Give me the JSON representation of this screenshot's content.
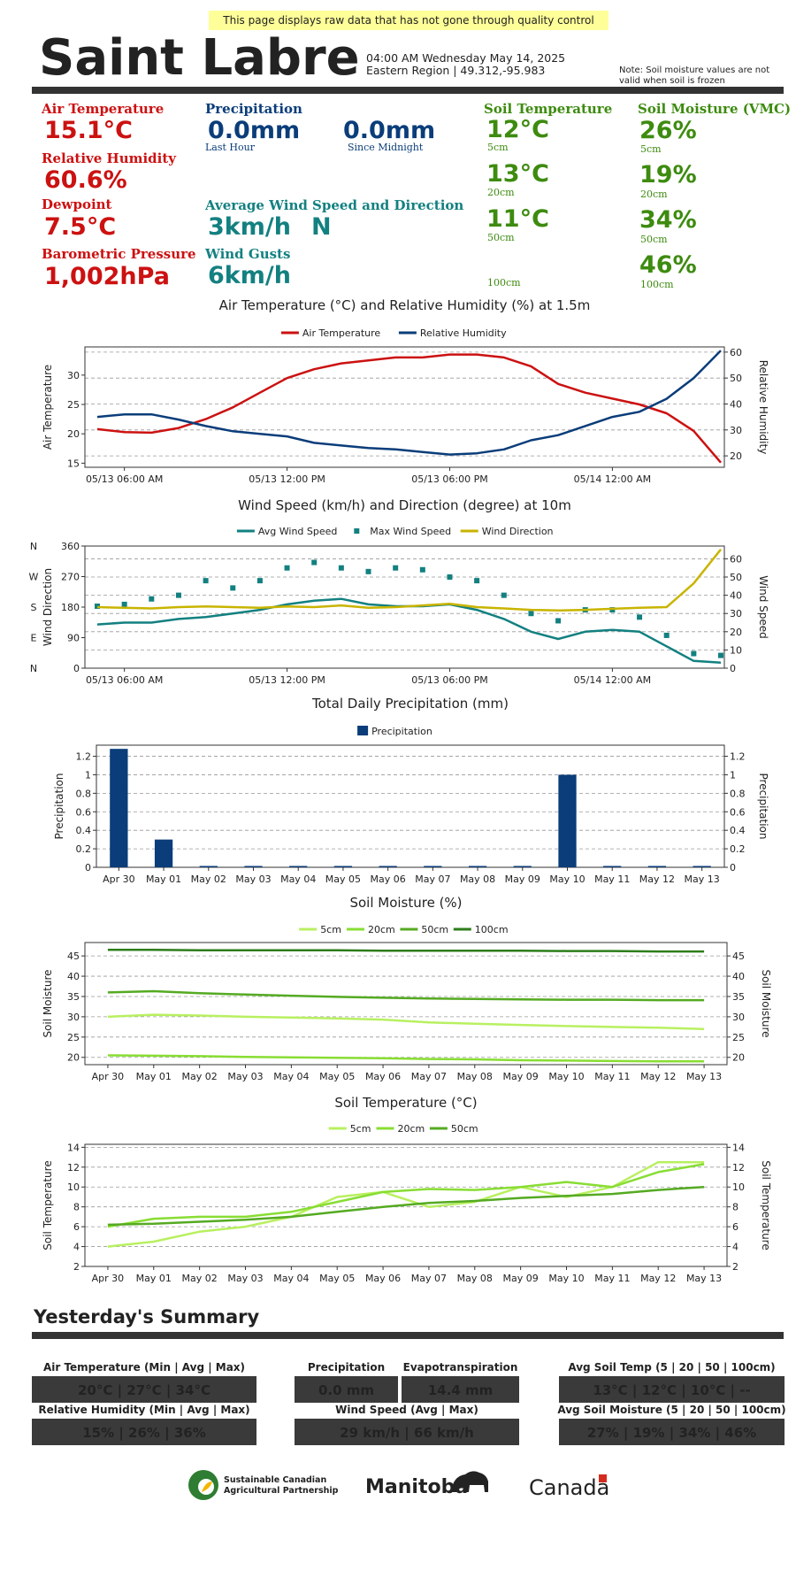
{
  "notice": "This page displays raw data that has not gone through quality control",
  "header": {
    "station": "Saint Labre",
    "datetime": "04:00 AM Wednesday May 14, 2025",
    "region": "Eastern Region | 49.312,-95.983",
    "note": [
      "Note: Soil moisture values are not",
      "valid when soil is frozen"
    ]
  },
  "current": {
    "air_temperature": {
      "label": "Air Temperature",
      "value": "15.1°C"
    },
    "relative_humidity": {
      "label": "Relative Humidity",
      "value": "60.6%"
    },
    "dewpoint": {
      "label": "Dewpoint",
      "value": "7.5°C"
    },
    "pressure": {
      "label": "Barometric Pressure",
      "value": "1,002hPa"
    },
    "precipitation": {
      "label": "Precipitation",
      "last_hour": {
        "value": "0.0mm",
        "label": "Last Hour"
      },
      "since_midnight": {
        "value": "0.0mm",
        "label": "Since Midnight"
      }
    },
    "wind": {
      "label": "Average Wind Speed and Direction",
      "value": "3km/h",
      "direction": "N"
    },
    "gusts": {
      "label": "Wind Gusts",
      "value": "6km/h"
    },
    "soil_temperature": {
      "label": "Soil Temperature",
      "readings": [
        {
          "value": "12°C",
          "depth": "5cm"
        },
        {
          "value": "13°C",
          "depth": "20cm"
        },
        {
          "value": "11°C",
          "depth": "50cm"
        },
        {
          "depth": "100cm"
        }
      ]
    },
    "soil_moisture": {
      "label": "Soil Moisture (VMC)",
      "readings": [
        {
          "value": "26%",
          "depth": "5cm"
        },
        {
          "value": "19%",
          "depth": "20cm"
        },
        {
          "value": "34%",
          "depth": "50cm"
        },
        {
          "value": "46%",
          "depth": "100cm"
        }
      ]
    }
  },
  "chart_data": [
    {
      "type": "line",
      "title": "Air Temperature (°C) and Relative Humidity (%) at 1.5m",
      "x": [
        "05/13 05:00 AM",
        "05/13 06:00 AM",
        "05/13 07:00 AM",
        "05/13 08:00 AM",
        "05/13 09:00 AM",
        "05/13 10:00 AM",
        "05/13 11:00 AM",
        "05/13 12:00 PM",
        "05/13 01:00 PM",
        "05/13 02:00 PM",
        "05/13 03:00 PM",
        "05/13 04:00 PM",
        "05/13 05:00 PM",
        "05/13 06:00 PM",
        "05/13 07:00 PM",
        "05/13 08:00 PM",
        "05/13 09:00 PM",
        "05/13 10:00 PM",
        "05/13 11:00 PM",
        "05/14 12:00 AM",
        "05/14 01:00 AM",
        "05/14 02:00 AM",
        "05/14 03:00 AM",
        "05/14 04:00 AM"
      ],
      "xticks": [
        "05/13 06:00 AM",
        "05/13 12:00 PM",
        "05/13 06:00 PM",
        "05/14 12:00 AM"
      ],
      "ylabel": "Air Temperature",
      "y2label": "Relative Humidity",
      "ylim": [
        14.3,
        34.8
      ],
      "yticks": [
        15,
        20,
        25,
        30
      ],
      "y2lim": [
        15.6,
        62
      ],
      "y2ticks": [
        20,
        30,
        40,
        50,
        60
      ],
      "grid": "y2",
      "series": [
        {
          "name": "Air Temperature",
          "color": "#cc1111",
          "values": [
            20.8,
            20.3,
            20.2,
            21,
            22.5,
            24.5,
            27,
            29.5,
            31,
            32,
            32.5,
            33,
            33,
            33.5,
            33.5,
            33,
            31.5,
            28.5,
            27,
            26,
            25,
            23.5,
            20.5,
            15.1
          ]
        },
        {
          "name": "Relative Humidity",
          "color": "#0a3d7a",
          "axis": "y2",
          "values": [
            35,
            36,
            36,
            34,
            31.5,
            29.5,
            28.5,
            27.5,
            25,
            24,
            23,
            22.5,
            21.5,
            20.5,
            21,
            22.5,
            26,
            28,
            31.5,
            35,
            37,
            42,
            50,
            60.6
          ]
        }
      ]
    },
    {
      "type": "line",
      "title": "Wind Speed (km/h) and Direction (degree) at 10m",
      "x": [
        "05/13 05:00 AM",
        "05/13 06:00 AM",
        "05/13 07:00 AM",
        "05/13 08:00 AM",
        "05/13 09:00 AM",
        "05/13 10:00 AM",
        "05/13 11:00 AM",
        "05/13 12:00 PM",
        "05/13 01:00 PM",
        "05/13 02:00 PM",
        "05/13 03:00 PM",
        "05/13 04:00 PM",
        "05/13 05:00 PM",
        "05/13 06:00 PM",
        "05/13 07:00 PM",
        "05/13 08:00 PM",
        "05/13 09:00 PM",
        "05/13 10:00 PM",
        "05/13 11:00 PM",
        "05/14 12:00 AM",
        "05/14 01:00 AM",
        "05/14 02:00 AM",
        "05/14 03:00 AM",
        "05/14 04:00 AM"
      ],
      "xticks": [
        "05/13 06:00 AM",
        "05/13 12:00 PM",
        "05/13 06:00 PM",
        "05/14 12:00 AM"
      ],
      "ylabel": "Wind Direction",
      "y2label": "Wind Speed",
      "ylim": [
        0,
        360
      ],
      "yticks": [
        0,
        90,
        180,
        270,
        360
      ],
      "direction_labels": [
        "N",
        "E",
        "S",
        "W",
        "N"
      ],
      "y2lim": [
        0,
        67
      ],
      "y2ticks": [
        0,
        10,
        20,
        30,
        40,
        50,
        60
      ],
      "grid": "y2",
      "series": [
        {
          "name": "Avg Wind Speed",
          "color": "#138080",
          "axis": "y2",
          "values": [
            24,
            25,
            25,
            27,
            28,
            30,
            32,
            35,
            37,
            38,
            35,
            34,
            34,
            35,
            32,
            27,
            20,
            16,
            20,
            21,
            20,
            12,
            4,
            3
          ]
        },
        {
          "name": "Max Wind Speed",
          "color": "#138080",
          "axis": "y2",
          "mode": "markers",
          "values": [
            34,
            35,
            38,
            40,
            48,
            44,
            48,
            55,
            58,
            55,
            53,
            55,
            54,
            50,
            48,
            40,
            30,
            26,
            32,
            32,
            28,
            18,
            8,
            7
          ]
        },
        {
          "name": "Wind Direction",
          "color": "#c8b400",
          "values": [
            180,
            178,
            176,
            180,
            182,
            180,
            178,
            182,
            180,
            185,
            178,
            180,
            185,
            190,
            180,
            176,
            172,
            170,
            172,
            175,
            178,
            180,
            250,
            350
          ]
        }
      ]
    },
    {
      "type": "bar",
      "title": "Total Daily Precipitation (mm)",
      "categories": [
        "Apr 30",
        "May 01",
        "May 02",
        "May 03",
        "May 04",
        "May 05",
        "May 06",
        "May 07",
        "May 08",
        "May 09",
        "May 10",
        "May 11",
        "May 12",
        "May 13"
      ],
      "ylabel": "Precipitation",
      "y2label": "Precipitation",
      "ylim": [
        0,
        1.32
      ],
      "yticks": [
        0,
        0.2,
        0.4,
        0.6,
        0.8,
        1,
        1.2
      ],
      "y2lim": [
        0,
        1.32
      ],
      "y2ticks": [
        0,
        0.2,
        0.4,
        0.6,
        0.8,
        1,
        1.2
      ],
      "grid": "y",
      "series": [
        {
          "name": "Precipitation",
          "color": "#0a3d7a",
          "values": [
            1.28,
            0.3,
            0,
            0,
            0,
            0,
            0,
            0,
            0,
            0,
            1.0,
            0,
            0,
            0
          ]
        }
      ]
    },
    {
      "type": "line",
      "title": "Soil Moisture (%)",
      "categories": [
        "Apr 30",
        "May 01",
        "May 02",
        "May 03",
        "May 04",
        "May 05",
        "May 06",
        "May 07",
        "May 08",
        "May 09",
        "May 10",
        "May 11",
        "May 12",
        "May 13"
      ],
      "ylabel": "Soil Moisture",
      "y2label": "Soil Moisture",
      "ylim": [
        18.2,
        48.3
      ],
      "yticks": [
        20,
        25,
        30,
        35,
        40,
        45
      ],
      "y2lim": [
        18.2,
        48.3
      ],
      "y2ticks": [
        20,
        25,
        30,
        35,
        40,
        45
      ],
      "grid": "y",
      "series": [
        {
          "name": "5cm",
          "color": "#b8f060",
          "values": [
            30,
            30.5,
            30.3,
            30,
            29.8,
            29.6,
            29.3,
            28.6,
            28.3,
            28,
            27.7,
            27.5,
            27.3,
            27
          ]
        },
        {
          "name": "20cm",
          "color": "#88dd33",
          "values": [
            20.5,
            20.4,
            20.3,
            20.1,
            20,
            19.9,
            19.8,
            19.6,
            19.5,
            19.3,
            19.2,
            19.1,
            19,
            19
          ]
        },
        {
          "name": "50cm",
          "color": "#55aa22",
          "values": [
            36,
            36.3,
            35.8,
            35.5,
            35.2,
            34.9,
            34.7,
            34.5,
            34.4,
            34.3,
            34.2,
            34.2,
            34.1,
            34.1
          ]
        },
        {
          "name": "100cm",
          "color": "#2d7d1a",
          "values": [
            46.5,
            46.5,
            46.4,
            46.4,
            46.4,
            46.4,
            46.3,
            46.3,
            46.3,
            46.3,
            46.2,
            46.2,
            46.1,
            46.1
          ]
        }
      ]
    },
    {
      "type": "line",
      "title": "Soil Temperature (°C)",
      "categories": [
        "Apr 30",
        "May 01",
        "May 02",
        "May 03",
        "May 04",
        "May 05",
        "May 06",
        "May 07",
        "May 08",
        "May 09",
        "May 10",
        "May 11",
        "May 12",
        "May 13"
      ],
      "ylabel": "Soil Temperature",
      "y2label": "Soil Temperature",
      "ylim": [
        2,
        14.3
      ],
      "yticks": [
        2,
        4,
        6,
        8,
        10,
        12,
        14
      ],
      "y2lim": [
        2,
        14.3
      ],
      "y2ticks": [
        2,
        4,
        6,
        8,
        10,
        12,
        14
      ],
      "grid": "y",
      "series": [
        {
          "name": "5cm",
          "color": "#b8f060",
          "values": [
            4,
            4.5,
            5.5,
            6,
            7,
            9,
            9.5,
            8,
            8.5,
            10,
            9,
            10,
            12.5,
            12.5
          ]
        },
        {
          "name": "20cm",
          "color": "#88dd33",
          "values": [
            6,
            6.8,
            7,
            7,
            7.5,
            8.5,
            9.5,
            9.8,
            9.7,
            10,
            10.5,
            10,
            11.5,
            12.3
          ]
        },
        {
          "name": "50cm",
          "color": "#55aa22",
          "values": [
            6.2,
            6.3,
            6.5,
            6.7,
            7,
            7.5,
            8,
            8.4,
            8.6,
            8.9,
            9.1,
            9.3,
            9.7,
            10
          ]
        }
      ]
    }
  ],
  "summary": {
    "title": "Yesterday's Summary",
    "items": [
      {
        "label": "Air Temperature (Min | Avg | Max)",
        "value": "20°C | 27°C | 34°C"
      },
      {
        "label": "Relative Humidity (Min | Avg | Max)",
        "value": "15% | 26% | 36%"
      },
      {
        "label": "Precipitation",
        "value": "0.0 mm"
      },
      {
        "label": "Evapotranspiration",
        "value": "14.4 mm"
      },
      {
        "label": "Wind Speed (Avg | Max)",
        "value": "29 km/h | 66 km/h"
      },
      {
        "label": "Avg Soil Temp (5 | 20 | 50 | 100cm)",
        "value": "13°C | 12°C | 10°C | --"
      },
      {
        "label": "Avg Soil Moisture (5 | 20 | 50 | 100cm)",
        "value": "27% | 19% | 34% | 46%"
      }
    ]
  },
  "logos": {
    "partnership": [
      "Sustainable Canadian",
      "Agricultural Partnership"
    ],
    "province": "Manitoba",
    "country": "Canada"
  }
}
